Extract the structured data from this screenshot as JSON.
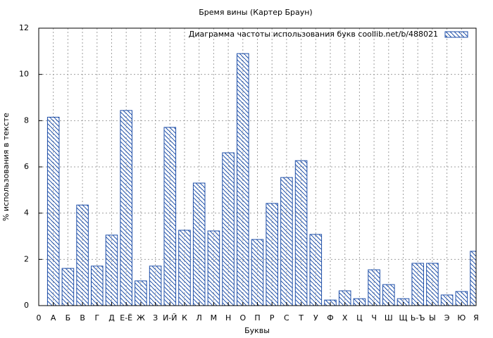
{
  "chart_data": {
    "type": "bar",
    "title": "Бремя вины (Картер Браун)",
    "legend_label": "Диаграмма частоты использования букв  coollib.net/b/488021",
    "legend_position": "top-right",
    "xlabel": "Буквы",
    "ylabel": "% использования в тексте",
    "color": "#1f4fa8",
    "grid": true,
    "x": [
      1,
      2,
      3,
      4,
      5,
      6,
      7,
      8,
      9,
      10,
      11,
      12,
      13,
      14,
      15,
      16,
      17,
      18,
      19,
      20,
      21,
      22,
      23,
      24,
      25,
      26,
      27,
      28,
      29,
      30
    ],
    "values": [
      8.15,
      1.61,
      4.35,
      1.71,
      3.05,
      8.44,
      1.07,
      1.71,
      7.71,
      3.26,
      5.3,
      3.23,
      6.61,
      10.9,
      2.86,
      4.42,
      5.54,
      6.27,
      3.08,
      0.24,
      0.64,
      0.3,
      1.55,
      0.91,
      0.3,
      1.83,
      1.83,
      0.46,
      0.61,
      2.35
    ],
    "xlim": [
      0,
      30
    ],
    "xticks": [
      0,
      {
        "value": 1,
        "label": "А"
      },
      {
        "value": 2,
        "label": "Б"
      },
      {
        "value": 3,
        "label": "В"
      },
      {
        "value": 4,
        "label": "Г"
      },
      {
        "value": 5,
        "label": "Д"
      },
      {
        "value": 6,
        "label": "Е-Ё"
      },
      {
        "value": 7,
        "label": "Ж"
      },
      {
        "value": 8,
        "label": "З"
      },
      {
        "value": 9,
        "label": "И-Й"
      },
      {
        "value": 10,
        "label": "К"
      },
      {
        "value": 11,
        "label": "Л"
      },
      {
        "value": 12,
        "label": "М"
      },
      {
        "value": 13,
        "label": "Н"
      },
      {
        "value": 14,
        "label": "О"
      },
      {
        "value": 15,
        "label": "П"
      },
      {
        "value": 16,
        "label": "Р"
      },
      {
        "value": 17,
        "label": "С"
      },
      {
        "value": 18,
        "label": "Т"
      },
      {
        "value": 19,
        "label": "У"
      },
      {
        "value": 20,
        "label": "Ф"
      },
      {
        "value": 21,
        "label": "Х"
      },
      {
        "value": 22,
        "label": "Ц"
      },
      {
        "value": 23,
        "label": "Ч"
      },
      {
        "value": 24,
        "label": "Ш"
      },
      {
        "value": 25,
        "label": "Щ"
      },
      {
        "value": 26,
        "label": "Ь-Ъ"
      },
      {
        "value": 27,
        "label": "Ы"
      },
      {
        "value": 28,
        "label": "Э"
      },
      {
        "value": 29,
        "label": "Ю"
      },
      {
        "value": 30,
        "label": "Я"
      }
    ],
    "ylim": [
      0,
      12
    ],
    "yticks": [
      0,
      2,
      4,
      6,
      8,
      10,
      12
    ]
  }
}
